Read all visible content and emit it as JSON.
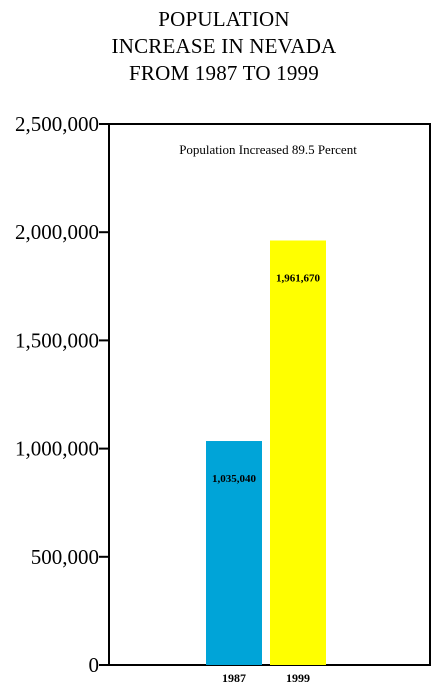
{
  "chart_data": {
    "type": "bar",
    "title_lines": [
      "POPULATION",
      "INCREASE IN NEVADA",
      "FROM 1987 TO 1999"
    ],
    "categories": [
      "1987",
      "1999"
    ],
    "values": [
      1035040,
      1961670
    ],
    "data_labels": [
      "1,035,040",
      "1,961,670"
    ],
    "colors": [
      "#00a4d8",
      "#ffff00"
    ],
    "ylim": [
      0,
      2500000
    ],
    "yticks": [
      0,
      500000,
      1000000,
      1500000,
      2000000,
      2500000
    ],
    "ytick_labels": [
      "0",
      "500,000",
      "1,000,000",
      "1,500,000",
      "2,000,000",
      "2,500,000"
    ],
    "annotation": "Population Increased 89.5 Percent",
    "xlabel": "",
    "ylabel": "",
    "grid": false,
    "legend": "none"
  }
}
